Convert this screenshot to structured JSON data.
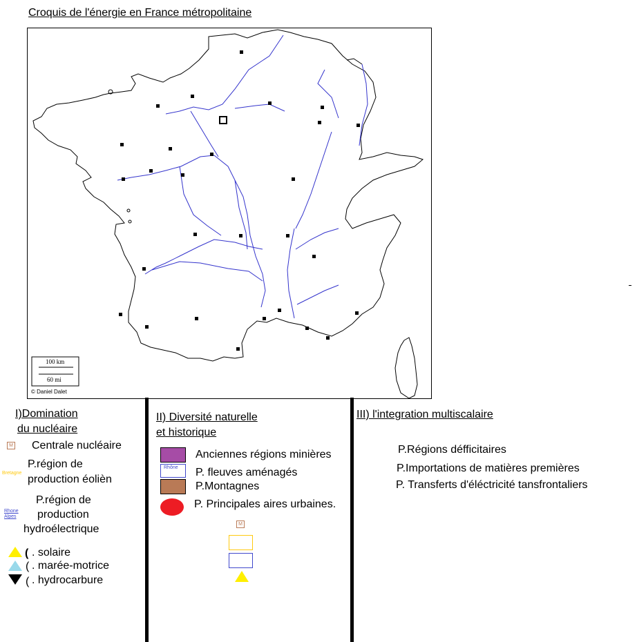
{
  "title": "Croquis de l'énergie en France métropolitaine",
  "map": {
    "scale_km": "100 km",
    "scale_mi": "60 mi",
    "copyright": "© Daniel Dalet"
  },
  "sections": {
    "s1": {
      "heading_line1": "I)Domination",
      "heading_line2": "du nucléaire",
      "item_nuclear": "Centrale nucléaire",
      "item_wind_line1": "P.région de",
      "item_wind_line2": "production éolièn",
      "item_wind_swatch": "Bretagne",
      "item_hydro_line1": "P.région de",
      "item_hydro_line2": "production",
      "item_hydro_line3": "hydroélectrique",
      "item_hydro_swatch_1": "Rhone",
      "item_hydro_swatch_2": "Alpes",
      "item_solar": ". solaire",
      "item_tidal": ". marée-motrice",
      "item_hydrocarbon": ". hydrocarbure"
    },
    "s2": {
      "heading_line1": "II) Diversité naturelle",
      "heading_line2": "et historique",
      "item_mining": "Anciennes régions minières",
      "item_rivers": "P. fleuves aménagés",
      "item_rivers_swatch": "Rhône",
      "item_mountains": "P.Montagnes",
      "item_urban": "P. Principales aires urbaines."
    },
    "s3": {
      "heading": "III) l'integration multiscalaire",
      "item_deficit": "P.Régions défficitaires",
      "item_imports": "P.Importations de matières premières",
      "item_transfers": "P. Transferts d'éléctricité tansfrontaliers"
    }
  },
  "colors": {
    "mining": "#a64ca6",
    "mountains": "#b97a56",
    "urban": "#ed1c24",
    "solar": "#ffef00",
    "tidal": "#99d9ea",
    "rivers": "#3333cc",
    "wind_border": "#ffc90e",
    "hydro_border": "#3f48cc"
  }
}
